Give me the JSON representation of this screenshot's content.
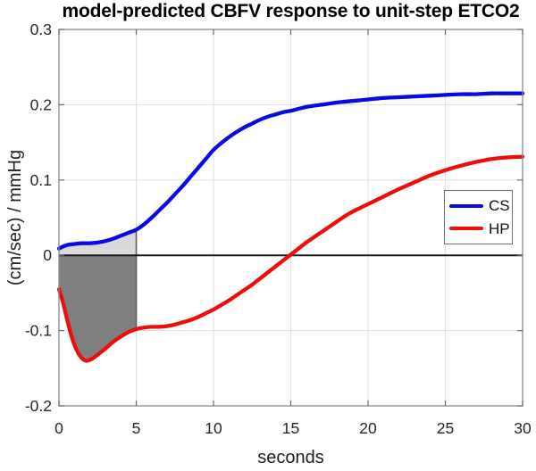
{
  "figure": {
    "title": "model-predicted CBFV response to unit-step ETCO2",
    "xlabel": "seconds",
    "ylabel": "(cm/sec) / mmHg"
  },
  "legend": {
    "position": "middle-right",
    "items": [
      {
        "label": "CS",
        "color": "#0a0ae0"
      },
      {
        "label": "HP",
        "color": "#ee0d0d"
      }
    ]
  },
  "colors": {
    "cs_line": "#0a0ae0",
    "hp_line": "#ee0d0d",
    "shade_above_zero": "#d9d9d9",
    "shade_below_zero": "#7f7f7f",
    "shade_edge": "#5c5c5c",
    "zero_line": "#1a1a1a",
    "grid": "#e1e1e1",
    "frame": "#8a8a8a",
    "tick": "#6b6b6b",
    "tick_label": "#262626"
  },
  "chart_data": {
    "type": "line",
    "title": "model-predicted CBFV response to unit-step ETCO2",
    "xlabel": "seconds",
    "ylabel": "(cm/sec) / mmHg",
    "xlim": [
      0,
      30
    ],
    "ylim": [
      -0.2,
      0.3
    ],
    "xticks": [
      0,
      5,
      10,
      15,
      20,
      25,
      30
    ],
    "yticks": [
      -0.2,
      -0.1,
      0,
      0.1,
      0.2,
      0.3
    ],
    "grid": true,
    "zero_line": true,
    "legend_position": "right-middle",
    "shaded_region": {
      "x_start": 0,
      "x_end": 5,
      "description": "area between each curve and the zero line from 0 to 5 s; light gray above zero under CS curve, dark gray below zero above HP curve, dark gray right edge at x=5"
    },
    "series": [
      {
        "name": "CS",
        "color": "#0a0ae0",
        "points": [
          [
            0,
            0.009
          ],
          [
            0.3,
            0.012
          ],
          [
            0.6,
            0.014
          ],
          [
            1,
            0.015
          ],
          [
            1.5,
            0.016
          ],
          [
            2,
            0.016
          ],
          [
            2.5,
            0.017
          ],
          [
            3,
            0.019
          ],
          [
            3.5,
            0.022
          ],
          [
            4,
            0.026
          ],
          [
            4.5,
            0.03
          ],
          [
            5,
            0.034
          ],
          [
            5.5,
            0.041
          ],
          [
            6,
            0.05
          ],
          [
            6.5,
            0.06
          ],
          [
            7,
            0.07
          ],
          [
            7.5,
            0.081
          ],
          [
            8,
            0.092
          ],
          [
            8.5,
            0.104
          ],
          [
            9,
            0.116
          ],
          [
            9.5,
            0.128
          ],
          [
            10,
            0.14
          ],
          [
            10.5,
            0.149
          ],
          [
            11,
            0.157
          ],
          [
            11.5,
            0.164
          ],
          [
            12,
            0.17
          ],
          [
            12.5,
            0.175
          ],
          [
            13,
            0.18
          ],
          [
            13.5,
            0.184
          ],
          [
            14,
            0.187
          ],
          [
            14.5,
            0.19
          ],
          [
            15,
            0.192
          ],
          [
            16,
            0.197
          ],
          [
            17,
            0.2
          ],
          [
            18,
            0.203
          ],
          [
            19,
            0.205
          ],
          [
            20,
            0.207
          ],
          [
            21,
            0.209
          ],
          [
            22,
            0.21
          ],
          [
            23,
            0.211
          ],
          [
            24,
            0.212
          ],
          [
            25,
            0.213
          ],
          [
            26,
            0.214
          ],
          [
            27,
            0.214
          ],
          [
            28,
            0.215
          ],
          [
            29,
            0.215
          ],
          [
            30,
            0.215
          ]
        ]
      },
      {
        "name": "HP",
        "color": "#ee0d0d",
        "points": [
          [
            0,
            -0.045
          ],
          [
            0.25,
            -0.062
          ],
          [
            0.5,
            -0.083
          ],
          [
            0.75,
            -0.103
          ],
          [
            1,
            -0.119
          ],
          [
            1.25,
            -0.13
          ],
          [
            1.5,
            -0.137
          ],
          [
            1.75,
            -0.14
          ],
          [
            2,
            -0.139
          ],
          [
            2.25,
            -0.136
          ],
          [
            2.5,
            -0.132
          ],
          [
            3,
            -0.124
          ],
          [
            3.5,
            -0.115
          ],
          [
            4,
            -0.108
          ],
          [
            4.5,
            -0.102
          ],
          [
            5,
            -0.098
          ],
          [
            5.5,
            -0.096
          ],
          [
            6,
            -0.095
          ],
          [
            6.5,
            -0.095
          ],
          [
            7,
            -0.094
          ],
          [
            7.5,
            -0.092
          ],
          [
            8,
            -0.089
          ],
          [
            8.5,
            -0.086
          ],
          [
            9,
            -0.082
          ],
          [
            9.5,
            -0.077
          ],
          [
            10,
            -0.072
          ],
          [
            10.5,
            -0.066
          ],
          [
            11,
            -0.06
          ],
          [
            11.5,
            -0.053
          ],
          [
            12,
            -0.046
          ],
          [
            12.5,
            -0.039
          ],
          [
            13,
            -0.031
          ],
          [
            13.5,
            -0.023
          ],
          [
            14,
            -0.015
          ],
          [
            14.5,
            -0.007
          ],
          [
            15,
            0.001
          ],
          [
            15.5,
            0.009
          ],
          [
            16,
            0.017
          ],
          [
            16.5,
            0.024
          ],
          [
            17,
            0.031
          ],
          [
            17.5,
            0.038
          ],
          [
            18,
            0.045
          ],
          [
            18.5,
            0.052
          ],
          [
            19,
            0.058
          ],
          [
            19.5,
            0.063
          ],
          [
            20,
            0.068
          ],
          [
            21,
            0.078
          ],
          [
            22,
            0.088
          ],
          [
            23,
            0.097
          ],
          [
            24,
            0.106
          ],
          [
            25,
            0.113
          ],
          [
            26,
            0.119
          ],
          [
            27,
            0.124
          ],
          [
            28,
            0.128
          ],
          [
            29,
            0.13
          ],
          [
            30,
            0.131
          ]
        ]
      }
    ]
  }
}
